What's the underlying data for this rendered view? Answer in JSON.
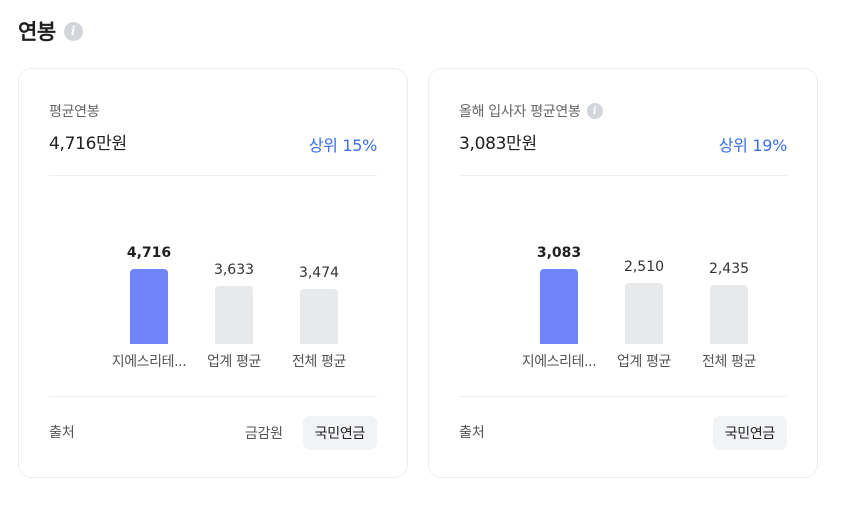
{
  "header": {
    "title": "연봉"
  },
  "cards": [
    {
      "label": "평균연봉",
      "value": "4,716만원",
      "rank": "상위 15%",
      "has_info": false,
      "footer_label": "출처",
      "sources": [
        {
          "label": "금감원",
          "active": false
        },
        {
          "label": "국민연금",
          "active": true
        }
      ],
      "chart_data": {
        "type": "bar",
        "categories": [
          "지에스리테...",
          "업계 평균",
          "전체 평균"
        ],
        "values": [
          4716,
          3633,
          3474
        ],
        "value_labels": [
          "4,716",
          "3,633",
          "3,474"
        ],
        "highlight_index": 0,
        "colors": {
          "highlight": "#7085f7",
          "default": "#e8e9eb"
        }
      }
    },
    {
      "label": "올해 입사자 평균연봉",
      "value": "3,083만원",
      "rank": "상위 19%",
      "has_info": true,
      "footer_label": "출처",
      "sources": [
        {
          "label": "국민연금",
          "active": true
        }
      ],
      "chart_data": {
        "type": "bar",
        "categories": [
          "지에스리테...",
          "업계 평균",
          "전체 평균"
        ],
        "values": [
          3083,
          2510,
          2435
        ],
        "value_labels": [
          "3,083",
          "2,510",
          "2,435"
        ],
        "highlight_index": 0,
        "colors": {
          "highlight": "#7085f7",
          "default": "#e8e9eb"
        }
      }
    }
  ]
}
